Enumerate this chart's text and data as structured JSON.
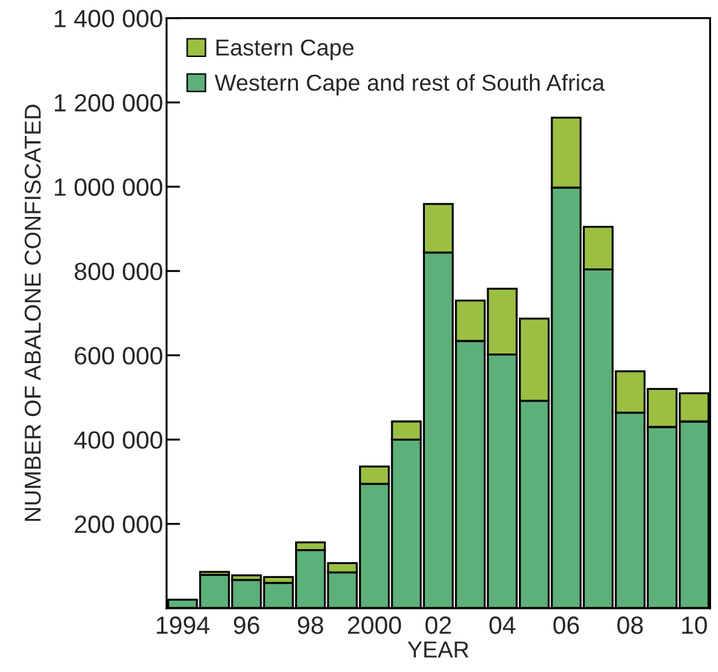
{
  "chart_data": {
    "type": "bar",
    "stacked": true,
    "xlabel": "YEAR",
    "ylabel": "NUMBER OF ABALONE CONFISCATED",
    "categories": [
      "1994",
      null,
      "96",
      null,
      "98",
      null,
      "2000",
      null,
      "02",
      null,
      "04",
      null,
      "06",
      null,
      "08",
      null,
      "10"
    ],
    "series": [
      {
        "name": "Western Cape and rest of South Africa",
        "color": "#5db07a",
        "values": [
          20000,
          79000,
          67000,
          60000,
          138000,
          85000,
          295000,
          400000,
          844000,
          634000,
          602000,
          492000,
          998000,
          804000,
          464000,
          430000,
          443000
        ]
      },
      {
        "name": "Eastern Cape",
        "color": "#9bbf43",
        "values": [
          null,
          7000,
          11000,
          14000,
          18000,
          22000,
          41000,
          43000,
          115000,
          96000,
          156000,
          195000,
          166000,
          101000,
          98000,
          90000,
          67000
        ]
      }
    ],
    "ylim": [
      0,
      1400000
    ],
    "yticks": [
      {
        "value": 200000,
        "label": "200 000"
      },
      {
        "value": 400000,
        "label": "400 000"
      },
      {
        "value": 600000,
        "label": "600 000"
      },
      {
        "value": 800000,
        "label": "800 000"
      },
      {
        "value": 1000000,
        "label": "1 000 000"
      },
      {
        "value": 1200000,
        "label": "1 200 000"
      },
      {
        "value": 1400000,
        "label": "1 400 000"
      }
    ],
    "legend": "top left",
    "grid": false
  }
}
